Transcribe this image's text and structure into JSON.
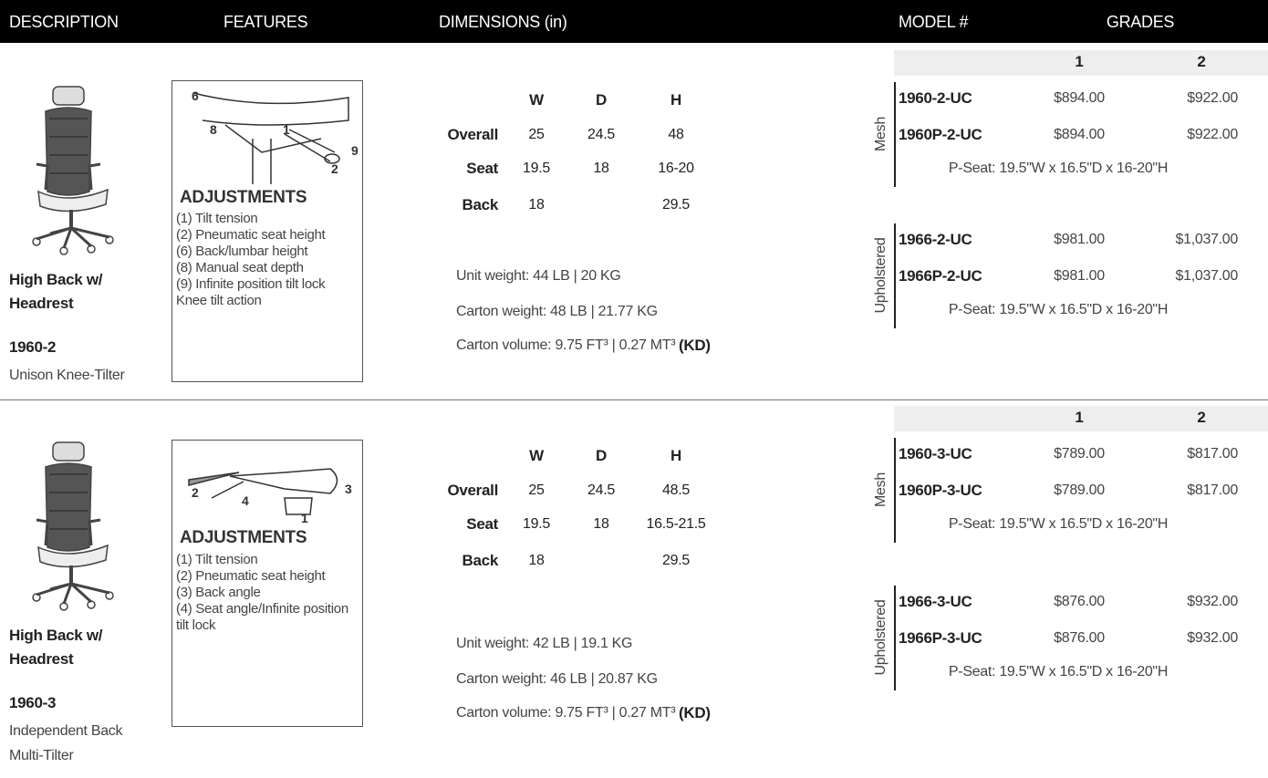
{
  "header": {
    "columns": [
      "DESCRIPTION",
      "FEATURES",
      "DIMENSIONS (in)",
      "MODEL #",
      "GRADES"
    ]
  },
  "products": [
    {
      "name": "High Back w/ Headrest",
      "model": "1960-2",
      "subtitle": "Unison Knee-Tilter",
      "features": {
        "callouts": [
          "6",
          "8",
          "1",
          "9",
          "2"
        ],
        "title": "ADJUSTMENTS",
        "items": [
          "(1) Tilt tension",
          "(2) Pneumatic seat height",
          "(6) Back/lumbar height",
          "(8) Manual seat depth",
          "(9) Infinite position tilt lock",
          "Knee tilt action"
        ]
      },
      "dimensions": {
        "columns": [
          "W",
          "D",
          "H"
        ],
        "rows": [
          {
            "label": "Overall",
            "values": [
              "25",
              "24.5",
              "48"
            ]
          },
          {
            "label": "Seat",
            "values": [
              "19.5",
              "18",
              "16-20"
            ]
          },
          {
            "label": "Back",
            "values": [
              "18",
              null,
              "29.5"
            ]
          }
        ]
      },
      "weights": [
        "Unit weight: 44 LB | 20 KG",
        "Carton weight: 48 LB | 21.77 KG"
      ],
      "volume": {
        "text": "Carton volume: 9.75 FT³ | 0.27 MT³",
        "suffix": "(KD)"
      },
      "grades": [
        "1",
        "2"
      ],
      "groups": [
        {
          "label": "Mesh",
          "rows": [
            [
              "1960-2-UC",
              "$894.00",
              "$922.00"
            ],
            [
              "1960P-2-UC",
              "$894.00",
              "$922.00"
            ]
          ],
          "note": "P-Seat: 19.5\"W x 16.5\"D x 16-20\"H"
        },
        {
          "label": "Upholstered",
          "rows": [
            [
              "1966-2-UC",
              "$981.00",
              "$1,037.00"
            ],
            [
              "1966P-2-UC",
              "$981.00",
              "$1,037.00"
            ]
          ],
          "note": "P-Seat: 19.5\"W x 16.5\"D x 16-20\"H"
        }
      ]
    },
    {
      "name": "High Back w/ Headrest",
      "model": "1960-3",
      "subtitle": "Independent Back Multi-Tilter",
      "features": {
        "callouts": [
          "2",
          "4",
          "1",
          "3"
        ],
        "title": "ADJUSTMENTS",
        "items": [
          "(1) Tilt tension",
          "(2) Pneumatic seat height",
          "(3) Back angle",
          "(4) Seat angle/Infinite position tilt lock"
        ]
      },
      "dimensions": {
        "columns": [
          "W",
          "D",
          "H"
        ],
        "rows": [
          {
            "label": "Overall",
            "values": [
              "25",
              "24.5",
              "48.5"
            ]
          },
          {
            "label": "Seat",
            "values": [
              "19.5",
              "18",
              "16.5-21.5"
            ]
          },
          {
            "label": "Back",
            "values": [
              "18",
              null,
              "29.5"
            ]
          }
        ]
      },
      "weights": [
        "Unit weight: 42 LB | 19.1 KG",
        "Carton weight: 46 LB | 20.87 KG"
      ],
      "volume": {
        "text": "Carton volume: 9.75 FT³ | 0.27 MT³",
        "suffix": "(KD)"
      },
      "grades": [
        "1",
        "2"
      ],
      "groups": [
        {
          "label": "Mesh",
          "rows": [
            [
              "1960-3-UC",
              "$789.00",
              "$817.00"
            ],
            [
              "1960P-3-UC",
              "$789.00",
              "$817.00"
            ]
          ],
          "note": "P-Seat: 19.5\"W x 16.5\"D x 16-20\"H"
        },
        {
          "label": "Upholstered",
          "rows": [
            [
              "1966-3-UC",
              "$876.00",
              "$932.00"
            ],
            [
              "1966P-3-UC",
              "$876.00",
              "$932.00"
            ]
          ],
          "note": "P-Seat: 19.5\"W x 16.5\"D x 16-20\"H"
        }
      ]
    }
  ]
}
